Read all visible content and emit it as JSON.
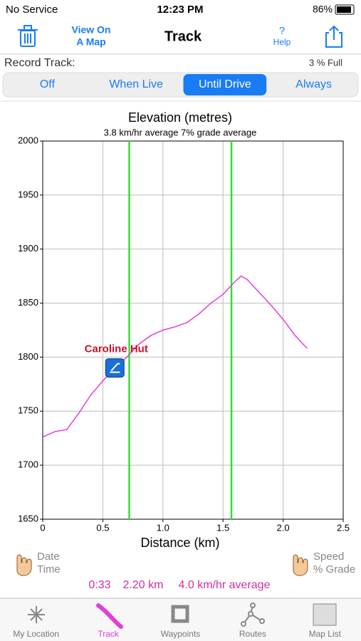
{
  "status_bar": {
    "carrier": "No Service",
    "time": "12:23 PM",
    "battery": "86%"
  },
  "nav_bar": {
    "view_on_map": [
      "View On",
      "A Map"
    ],
    "title": "Track",
    "help_icon": "?",
    "help": "Help"
  },
  "record": {
    "label": "Record Track:",
    "usage": "3 % Full",
    "options": [
      "Off",
      "When Live",
      "Until Drive",
      "Always"
    ],
    "selected": 2
  },
  "chart_data": {
    "type": "line",
    "title": "Elevation (metres)",
    "subtitle": "3.8 km/hr average  7% grade average",
    "x_label": "Distance (km)",
    "color": "#e040d8",
    "x": [
      0,
      0.1,
      0.2,
      0.3,
      0.4,
      0.5,
      0.6,
      0.7,
      0.8,
      0.9,
      1.0,
      1.1,
      1.2,
      1.3,
      1.4,
      1.5,
      1.6,
      1.65,
      1.7,
      1.8,
      1.9,
      2.0,
      2.1,
      2.2
    ],
    "values": [
      1726,
      1731,
      1733,
      1748,
      1765,
      1778,
      1790,
      1800,
      1812,
      1820,
      1825,
      1828,
      1832,
      1840,
      1850,
      1858,
      1870,
      1875,
      1872,
      1860,
      1848,
      1835,
      1820,
      1808
    ],
    "xlim": [
      0,
      2.5
    ],
    "ylim": [
      1650,
      2000
    ],
    "xticks": [
      0,
      0.5,
      {
        "value": 1,
        "label": "1.0"
      },
      1.5,
      {
        "value": 2,
        "label": "2.0"
      },
      2.5
    ],
    "yticks": [
      1650,
      1700,
      1750,
      1800,
      1850,
      1900,
      1950,
      2000
    ],
    "grid": true,
    "marker_lines": [
      0.72,
      1.57
    ],
    "marker_color": "#33dd33",
    "annotation": {
      "text": "Caroline Hut",
      "x": 0.6,
      "y": 1790
    }
  },
  "footer": {
    "left": [
      "Date",
      "Time"
    ],
    "right": [
      "Speed",
      "% Grade"
    ],
    "stats": [
      "0:33",
      "2.20 km",
      "4.0 km/hr average"
    ]
  },
  "tabs": {
    "items": [
      "My Location",
      "Track",
      "Waypoints",
      "Routes",
      "Map List"
    ],
    "selected": 1
  }
}
